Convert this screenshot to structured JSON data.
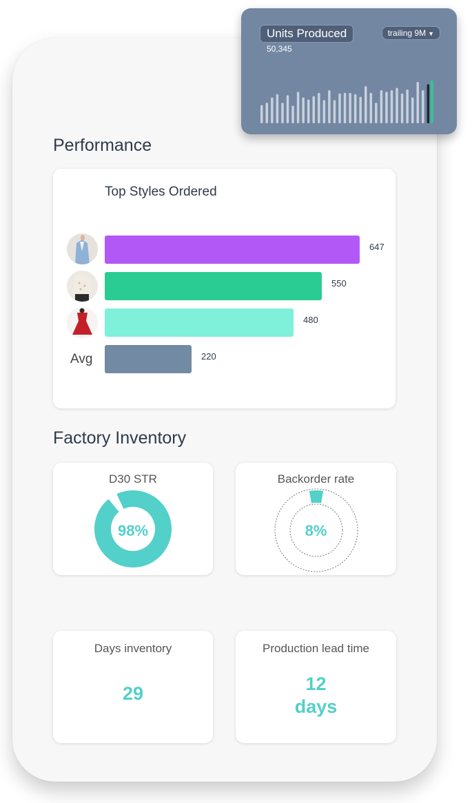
{
  "units_produced": {
    "title": "Units Produced",
    "range_label": "trailing 9M",
    "value": "50,345",
    "bars": [
      0.55,
      0.62,
      0.78,
      0.88,
      0.62,
      0.85,
      0.53,
      0.95,
      0.78,
      0.72,
      0.82,
      0.92,
      0.7,
      1.0,
      0.7,
      0.9,
      0.92,
      0.92,
      0.88,
      0.8,
      1.12,
      0.92,
      0.62,
      1.0,
      0.95,
      1.0,
      1.07,
      0.9,
      1.02,
      0.78,
      1.25,
      1.0
    ],
    "highlight_dark": 1.18,
    "highlight_green": 1.3,
    "colors": {
      "bar": "#c9d1de",
      "dark": "#1f2733",
      "green": "#2bcc91"
    }
  },
  "performance": {
    "title": "Performance",
    "chart_data": {
      "type": "bar",
      "title": "Top Styles Ordered",
      "categories": [
        "style-1",
        "style-2",
        "style-3",
        "Avg"
      ],
      "values": [
        647,
        550,
        480,
        220
      ],
      "colors": [
        "#b258f6",
        "#2bcc94",
        "#7ff0d9",
        "#728aa3"
      ]
    },
    "avg_label": "Avg"
  },
  "factory": {
    "title": "Factory Inventory",
    "d30": {
      "label": "D30 STR",
      "value": "98%",
      "fraction": 0.98
    },
    "backorder": {
      "label": "Backorder rate",
      "value": "8%",
      "fraction": 0.08
    },
    "days_inventory": {
      "label": "Days inventory",
      "value": "29"
    },
    "lead_time": {
      "label": "Production lead time",
      "value_line1": "12",
      "value_line2": "days"
    }
  },
  "accent": "#52d0c9"
}
